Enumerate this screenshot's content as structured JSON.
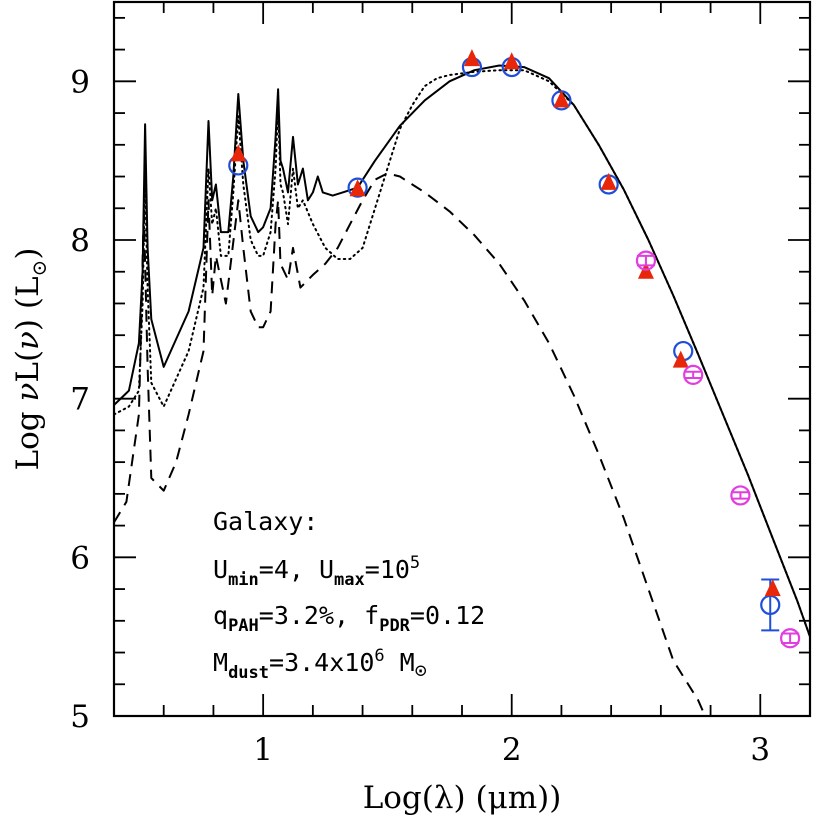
{
  "chart_data": {
    "type": "line",
    "title": "",
    "xlabel": "Log(λ)  (μm))",
    "ylabel_parts": {
      "prefix": "Log ",
      "nu": "ν",
      "mid": "L(",
      "nu2": "ν",
      "suffix": ")  (L",
      "sun": "⊙",
      "close": ")"
    },
    "xlim": [
      0.4,
      3.2
    ],
    "ylim": [
      5,
      9.5
    ],
    "x_ticks": [
      1,
      2,
      3
    ],
    "x_tick_labels": [
      "1",
      "2",
      "3"
    ],
    "y_ticks": [
      5,
      6,
      7,
      8,
      9
    ],
    "y_tick_labels": [
      "5",
      "6",
      "7",
      "8",
      "9"
    ],
    "series": [
      {
        "name": "total model",
        "style": "solid",
        "x": [
          0.4,
          0.46,
          0.5,
          0.515,
          0.525,
          0.535,
          0.55,
          0.6,
          0.7,
          0.76,
          0.78,
          0.795,
          0.81,
          0.83,
          0.86,
          0.88,
          0.9,
          0.92,
          0.95,
          0.98,
          1.0,
          1.03,
          1.05,
          1.06,
          1.07,
          1.08,
          1.1,
          1.12,
          1.14,
          1.16,
          1.18,
          1.2,
          1.22,
          1.24,
          1.28,
          1.32,
          1.38,
          1.45,
          1.55,
          1.65,
          1.75,
          1.85,
          1.95,
          2.05,
          2.15,
          2.25,
          2.35,
          2.45,
          2.55,
          2.65,
          2.75,
          2.85,
          2.95,
          3.05,
          3.15,
          3.2
        ],
        "y": [
          6.96,
          7.05,
          7.35,
          7.8,
          8.73,
          7.95,
          7.5,
          7.2,
          7.55,
          7.95,
          8.75,
          8.25,
          8.35,
          8.05,
          8.05,
          8.4,
          8.92,
          8.5,
          8.15,
          8.05,
          8.08,
          8.2,
          8.65,
          8.95,
          8.5,
          8.45,
          8.3,
          8.65,
          8.35,
          8.45,
          8.25,
          8.3,
          8.4,
          8.3,
          8.28,
          8.3,
          8.33,
          8.5,
          8.72,
          8.88,
          9.0,
          9.07,
          9.1,
          9.09,
          9.02,
          8.85,
          8.6,
          8.32,
          8.0,
          7.65,
          7.28,
          6.9,
          6.52,
          6.12,
          5.72,
          5.5
        ]
      },
      {
        "name": "dust component (dotted)",
        "style": "dotted",
        "x": [
          0.4,
          0.46,
          0.5,
          0.515,
          0.525,
          0.535,
          0.55,
          0.6,
          0.7,
          0.76,
          0.78,
          0.795,
          0.81,
          0.83,
          0.86,
          0.88,
          0.9,
          0.92,
          0.95,
          0.98,
          1.0,
          1.03,
          1.05,
          1.06,
          1.07,
          1.08,
          1.1,
          1.12,
          1.14,
          1.16,
          1.2,
          1.25,
          1.3,
          1.35,
          1.4,
          1.45,
          1.5,
          1.55,
          1.6,
          1.65,
          1.7,
          1.75,
          1.85,
          1.95,
          2.05,
          2.15,
          2.25,
          2.35,
          2.45,
          2.55,
          2.65,
          2.75,
          2.85,
          2.95,
          3.05,
          3.15,
          3.2
        ],
        "y": [
          6.9,
          6.95,
          7.05,
          7.6,
          8.4,
          7.7,
          7.1,
          6.95,
          7.3,
          7.7,
          8.45,
          8.1,
          8.2,
          7.9,
          7.9,
          8.3,
          8.78,
          8.35,
          8.0,
          7.9,
          7.9,
          8.05,
          8.45,
          8.85,
          8.35,
          8.3,
          8.1,
          8.45,
          8.2,
          8.25,
          8.1,
          7.95,
          7.88,
          7.88,
          7.95,
          8.2,
          8.45,
          8.7,
          8.85,
          8.97,
          9.02,
          9.04,
          9.06,
          9.07,
          9.07,
          9.0,
          8.85,
          8.6,
          8.32,
          8.0,
          7.65,
          7.28,
          6.9,
          6.52,
          6.12,
          5.72,
          5.5
        ]
      },
      {
        "name": "dust component (dashed)",
        "style": "dashed",
        "x": [
          0.4,
          0.45,
          0.5,
          0.51,
          0.52,
          0.535,
          0.55,
          0.6,
          0.65,
          0.7,
          0.76,
          0.78,
          0.795,
          0.81,
          0.85,
          0.9,
          0.92,
          0.95,
          0.98,
          1.0,
          1.03,
          1.05,
          1.06,
          1.07,
          1.1,
          1.12,
          1.15,
          1.2,
          1.25,
          1.3,
          1.35,
          1.4,
          1.45,
          1.5,
          1.55,
          1.6,
          1.65,
          1.75,
          1.85,
          1.95,
          2.05,
          2.15,
          2.25,
          2.35,
          2.45,
          2.55,
          2.65,
          2.75,
          2.8,
          2.84
        ],
        "y": [
          6.22,
          6.35,
          6.9,
          7.5,
          8.2,
          7.2,
          6.5,
          6.42,
          6.6,
          6.9,
          7.3,
          8.25,
          7.65,
          7.9,
          7.6,
          8.25,
          7.95,
          7.55,
          7.45,
          7.45,
          7.55,
          8.1,
          8.25,
          7.85,
          7.75,
          7.95,
          7.7,
          7.78,
          7.85,
          7.95,
          8.1,
          8.25,
          8.38,
          8.42,
          8.4,
          8.35,
          8.3,
          8.18,
          8.03,
          7.85,
          7.62,
          7.35,
          7.02,
          6.65,
          6.25,
          5.8,
          5.35,
          5.1,
          4.92,
          4.8
        ]
      }
    ],
    "observations": [
      {
        "name": "blue circles",
        "color": "#1f4fd8",
        "marker": "circle",
        "x": [
          0.9,
          1.38,
          1.84,
          2.0,
          2.2,
          2.39,
          2.69,
          3.04
        ],
        "y": [
          8.47,
          8.33,
          9.09,
          9.09,
          8.88,
          8.35,
          7.3,
          5.7
        ],
        "err": [
          0,
          0,
          0,
          0,
          0,
          0,
          0,
          0.16
        ]
      },
      {
        "name": "red triangles",
        "color": "#e8260a",
        "marker": "triangle",
        "x": [
          0.9,
          1.38,
          1.84,
          2.0,
          2.2,
          2.39,
          2.54,
          2.68,
          3.05
        ],
        "y": [
          8.54,
          8.32,
          9.14,
          9.12,
          8.88,
          8.36,
          7.8,
          7.24,
          5.8
        ],
        "err": [
          0,
          0,
          0,
          0,
          0,
          0,
          0,
          0,
          0
        ]
      },
      {
        "name": "magenta circles",
        "color": "#e23de0",
        "marker": "circle",
        "x": [
          2.54,
          2.73,
          2.92,
          3.12
        ],
        "y": [
          7.87,
          7.15,
          6.39,
          5.49
        ],
        "err": [
          0.03,
          0.02,
          0.02,
          0.03
        ]
      }
    ],
    "annotation": {
      "line1": "Galaxy:",
      "l2a": "U",
      "l2a_sub": "min",
      "l2b": "=4,  U",
      "l2b_sub": "max",
      "l2c": "=10",
      "l2c_sup": "5",
      "l3a": "q",
      "l3a_sub": "PAH",
      "l3b": "=3.2%,  f",
      "l3b_sub": "PDR",
      "l3c": "=0.12",
      "l4a": "M",
      "l4a_sub": "dust",
      "l4b": "=3.4x10",
      "l4b_sup": "6",
      "l4c": " M",
      "l4d": "⊙"
    }
  }
}
